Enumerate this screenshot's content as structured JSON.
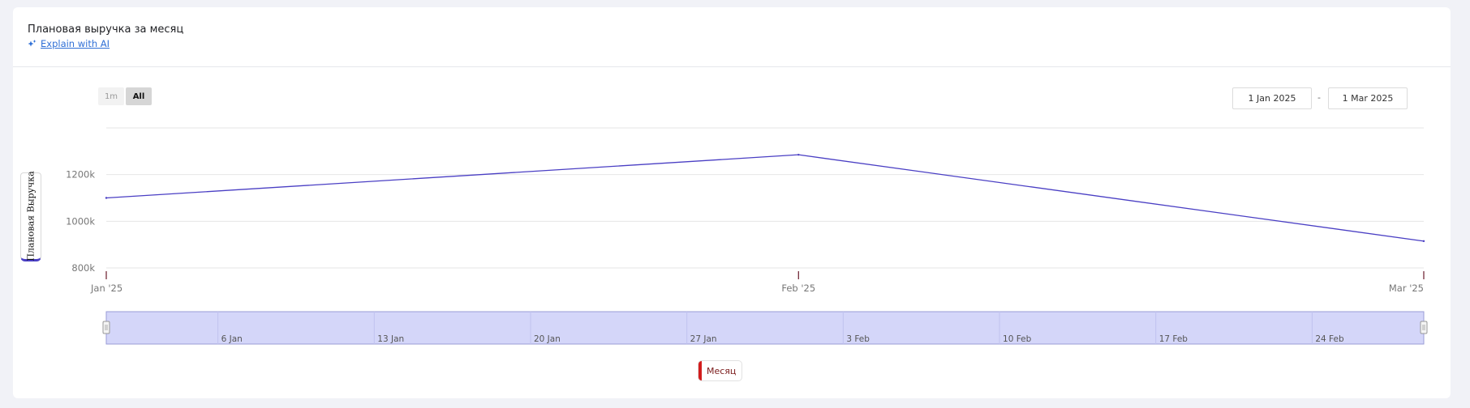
{
  "header": {
    "title": "Плановая выручка за месяц",
    "ai_link": "Explain with AI"
  },
  "range_buttons": [
    {
      "label": "1m",
      "active": false
    },
    {
      "label": "All",
      "active": true
    }
  ],
  "date_range": {
    "from": "1 Jan 2025",
    "separator": "-",
    "to": "1 Mar 2025"
  },
  "chart_data": {
    "type": "line",
    "ylabel": "Плановая Выручка",
    "x": [
      "2025-01-01",
      "2025-02-01",
      "2025-03-01"
    ],
    "x_tick_labels": [
      "Jan '25",
      "Feb '25",
      "Mar '25"
    ],
    "series": [
      {
        "name": "Месяц",
        "color": "#4a3fc4",
        "values": [
          1100000,
          1285000,
          915000
        ]
      }
    ],
    "y_ticks": [
      {
        "value": 800000,
        "label": "800k"
      },
      {
        "value": 1000000,
        "label": "1000k"
      },
      {
        "value": 1200000,
        "label": "1200k"
      }
    ],
    "ylim": [
      800000,
      1400000
    ],
    "grid": true,
    "legend": "bottom-center",
    "navigator": {
      "labels": [
        "6 Jan",
        "13 Jan",
        "20 Jan",
        "27 Jan",
        "3 Feb",
        "10 Feb",
        "17 Feb",
        "24 Feb"
      ],
      "label_dates": [
        "2025-01-06",
        "2025-01-13",
        "2025-01-20",
        "2025-01-27",
        "2025-02-03",
        "2025-02-10",
        "2025-02-17",
        "2025-02-24"
      ],
      "fill_color": "#d4d6f9"
    }
  }
}
